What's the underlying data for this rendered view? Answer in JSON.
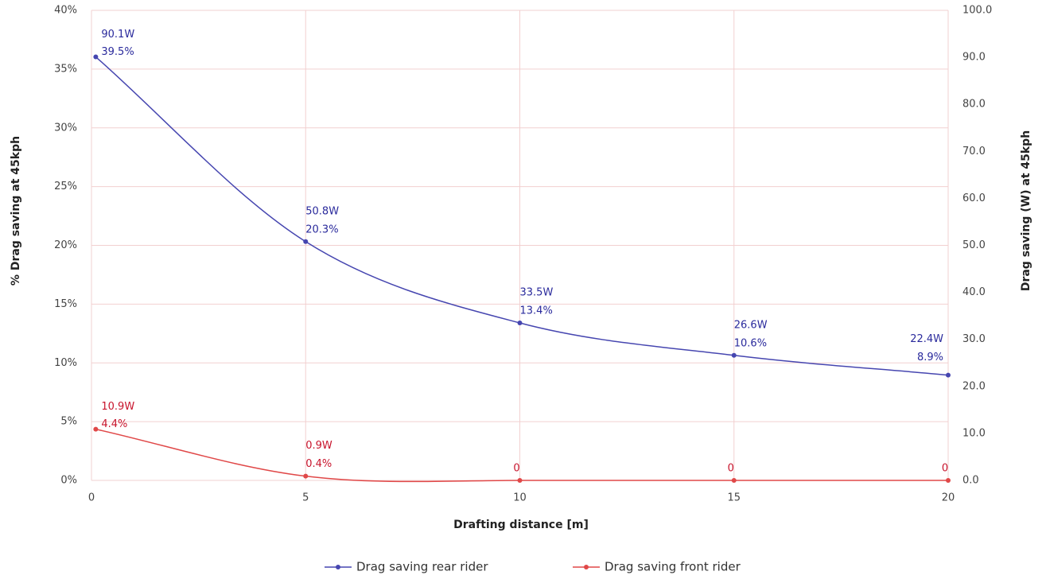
{
  "chart_data": {
    "type": "line",
    "x_label": "Drafting distance [m]",
    "y_label": "% Drag saving at 45kph",
    "y2_label": "Drag saving (W) at 45kph",
    "x": [
      0.1,
      5,
      10,
      15,
      20
    ],
    "xlim": [
      0,
      20
    ],
    "xticks": [
      0,
      5,
      10,
      15,
      20
    ],
    "ylim": [
      0,
      40
    ],
    "yticks": [
      {
        "value": 0,
        "label": "0%"
      },
      {
        "value": 5,
        "label": "5%"
      },
      {
        "value": 10,
        "label": "10%"
      },
      {
        "value": 15,
        "label": "15%"
      },
      {
        "value": 20,
        "label": "20%"
      },
      {
        "value": 25,
        "label": "25%"
      },
      {
        "value": 30,
        "label": "30%"
      },
      {
        "value": 35,
        "label": "35%"
      },
      {
        "value": 40,
        "label": "40%"
      }
    ],
    "y2lim": [
      0,
      100
    ],
    "y2ticks": [
      {
        "value": 0,
        "label": "0.0"
      },
      {
        "value": 10,
        "label": "10.0"
      },
      {
        "value": 20,
        "label": "20.0"
      },
      {
        "value": 30,
        "label": "30.0"
      },
      {
        "value": 40,
        "label": "40.0"
      },
      {
        "value": 50,
        "label": "50.0"
      },
      {
        "value": 60,
        "label": "60.0"
      },
      {
        "value": 70,
        "label": "70.0"
      },
      {
        "value": 80,
        "label": "80.0"
      },
      {
        "value": 90,
        "label": "90.0"
      },
      {
        "value": 100,
        "label": "100.0"
      }
    ],
    "grid": true,
    "legend": "bottom",
    "series": [
      {
        "name": "Drag saving rear rider",
        "color": "#4646b0",
        "label_color": "#2a2a9c",
        "axis": "y2",
        "values": [
          90.1,
          50.8,
          33.5,
          26.6,
          22.4
        ],
        "value_labels": [
          "90.1W",
          "50.8W",
          "33.5W",
          "26.6W",
          "22.4W"
        ],
        "percent_labels": [
          "39.5%",
          "20.3%",
          "13.4%",
          "10.6%",
          "8.9%"
        ]
      },
      {
        "name": "Drag saving front rider",
        "color": "#e04848",
        "label_color": "#c8142c",
        "axis": "y2",
        "values": [
          10.9,
          0.9,
          0,
          0,
          0
        ],
        "value_labels": [
          "10.9W",
          "0.9W",
          "0",
          "0",
          "0"
        ],
        "percent_labels": [
          "4.4%",
          "0.4%",
          null,
          null,
          null
        ]
      }
    ]
  }
}
